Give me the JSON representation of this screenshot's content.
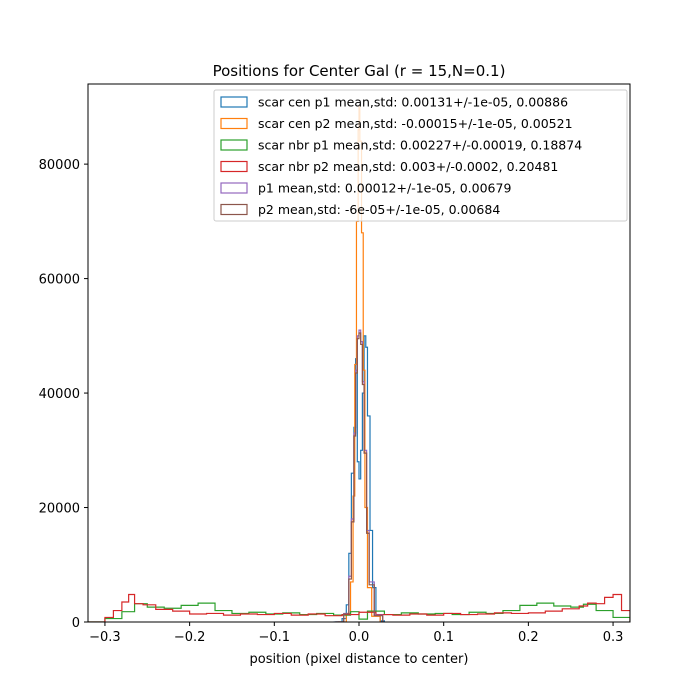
{
  "chart_data": {
    "type": "line",
    "histtype": "step",
    "title": "Positions for Center Gal (r = 15,N=0.1)",
    "xlabel": "position (pixel distance to center)",
    "ylabel": "",
    "xlim": [
      -0.32,
      0.32
    ],
    "ylim": [
      0,
      94000
    ],
    "xticks": [
      -0.3,
      -0.2,
      -0.1,
      0.0,
      0.1,
      0.2,
      0.3
    ],
    "xtick_labels": [
      "−0.3",
      "−0.2",
      "−0.1",
      "0.0",
      "0.1",
      "0.2",
      "0.3"
    ],
    "yticks": [
      0,
      20000,
      40000,
      60000,
      80000
    ],
    "ytick_labels": [
      "0",
      "20000",
      "40000",
      "60000",
      "80000"
    ],
    "grid": false,
    "legend_position": "top-right",
    "series": [
      {
        "name": "scar cen p1 mean,std: 0.00131+/-1e-05, 0.00886",
        "color": "#1f77b4",
        "x": [
          -0.03,
          -0.02,
          -0.015,
          -0.012,
          -0.009,
          -0.006,
          -0.004,
          -0.002,
          0.0,
          0.002,
          0.004,
          0.006,
          0.008,
          0.01,
          0.013,
          0.016,
          0.02,
          0.025,
          0.03
        ],
        "y": [
          0,
          600,
          3000,
          12000,
          26000,
          34000,
          46000,
          28000,
          25000,
          30000,
          40000,
          50000,
          48000,
          36000,
          16000,
          6000,
          1200,
          200,
          0
        ]
      },
      {
        "name": "scar cen p2 mean,std: -0.00015+/-1e-05, 0.00521",
        "color": "#ff7f0e",
        "x": [
          -0.025,
          -0.015,
          -0.01,
          -0.007,
          -0.005,
          -0.003,
          -0.001,
          0.0,
          0.001,
          0.003,
          0.005,
          0.007,
          0.01,
          0.015,
          0.025
        ],
        "y": [
          0,
          1500,
          7000,
          22000,
          45000,
          70000,
          86000,
          90000,
          84000,
          68000,
          44000,
          20000,
          6000,
          1000,
          0
        ]
      },
      {
        "name": "scar nbr p1 mean,std: 0.00227+/-0.00019, 0.18874",
        "color": "#2ca02c",
        "x": [
          -0.32,
          -0.3,
          -0.28,
          -0.265,
          -0.25,
          -0.23,
          -0.21,
          -0.19,
          -0.17,
          -0.15,
          -0.13,
          -0.11,
          -0.09,
          -0.07,
          -0.05,
          -0.03,
          -0.01,
          0.0,
          0.01,
          0.03,
          0.05,
          0.07,
          0.09,
          0.11,
          0.13,
          0.15,
          0.17,
          0.19,
          0.21,
          0.23,
          0.25,
          0.265,
          0.28,
          0.3,
          0.32
        ],
        "y": [
          0,
          600,
          1800,
          3200,
          2600,
          2400,
          2900,
          3300,
          2000,
          1500,
          1700,
          1400,
          1600,
          1300,
          1500,
          1200,
          1800,
          500,
          1900,
          1300,
          1600,
          1400,
          1500,
          1300,
          1700,
          1500,
          2000,
          2900,
          3300,
          2800,
          2600,
          3100,
          2000,
          800,
          0
        ]
      },
      {
        "name": "scar nbr p2 mean,std: 0.003+/-0.0002, 0.20481",
        "color": "#d62728",
        "x": [
          -0.32,
          -0.3,
          -0.29,
          -0.28,
          -0.272,
          -0.265,
          -0.255,
          -0.24,
          -0.22,
          -0.2,
          -0.18,
          -0.16,
          -0.14,
          -0.12,
          -0.1,
          -0.08,
          -0.06,
          -0.04,
          -0.02,
          0.0,
          0.02,
          0.04,
          0.06,
          0.08,
          0.1,
          0.12,
          0.14,
          0.16,
          0.18,
          0.2,
          0.22,
          0.24,
          0.26,
          0.27,
          0.28,
          0.29,
          0.3,
          0.31,
          0.32
        ],
        "y": [
          0,
          800,
          2000,
          3500,
          4800,
          3200,
          3000,
          2200,
          1900,
          1400,
          1500,
          1200,
          1400,
          1300,
          1500,
          1200,
          1400,
          1100,
          1300,
          1700,
          1300,
          1200,
          1400,
          1200,
          1500,
          1300,
          1400,
          1600,
          1500,
          1600,
          1900,
          2300,
          2800,
          3300,
          3200,
          4300,
          4800,
          2000,
          0
        ]
      },
      {
        "name": "p1 mean,std: 0.00012+/-1e-05, 0.00679",
        "color": "#9467bd",
        "x": [
          -0.028,
          -0.018,
          -0.012,
          -0.009,
          -0.006,
          -0.004,
          -0.002,
          0.0,
          0.002,
          0.004,
          0.006,
          0.009,
          0.012,
          0.018,
          0.028
        ],
        "y": [
          0,
          1500,
          8000,
          18000,
          33000,
          44000,
          50000,
          51000,
          49000,
          42000,
          30000,
          16000,
          7000,
          1200,
          0
        ]
      },
      {
        "name": "p2 mean,std: -6e-05+/-1e-05, 0.00684",
        "color": "#8c564b",
        "x": [
          -0.028,
          -0.018,
          -0.012,
          -0.009,
          -0.006,
          -0.004,
          -0.002,
          0.0,
          0.002,
          0.004,
          0.006,
          0.009,
          0.012,
          0.018,
          0.028
        ],
        "y": [
          0,
          1400,
          7500,
          17500,
          32500,
          43500,
          49500,
          50500,
          48500,
          41500,
          29500,
          15500,
          6500,
          1100,
          0
        ]
      }
    ]
  }
}
